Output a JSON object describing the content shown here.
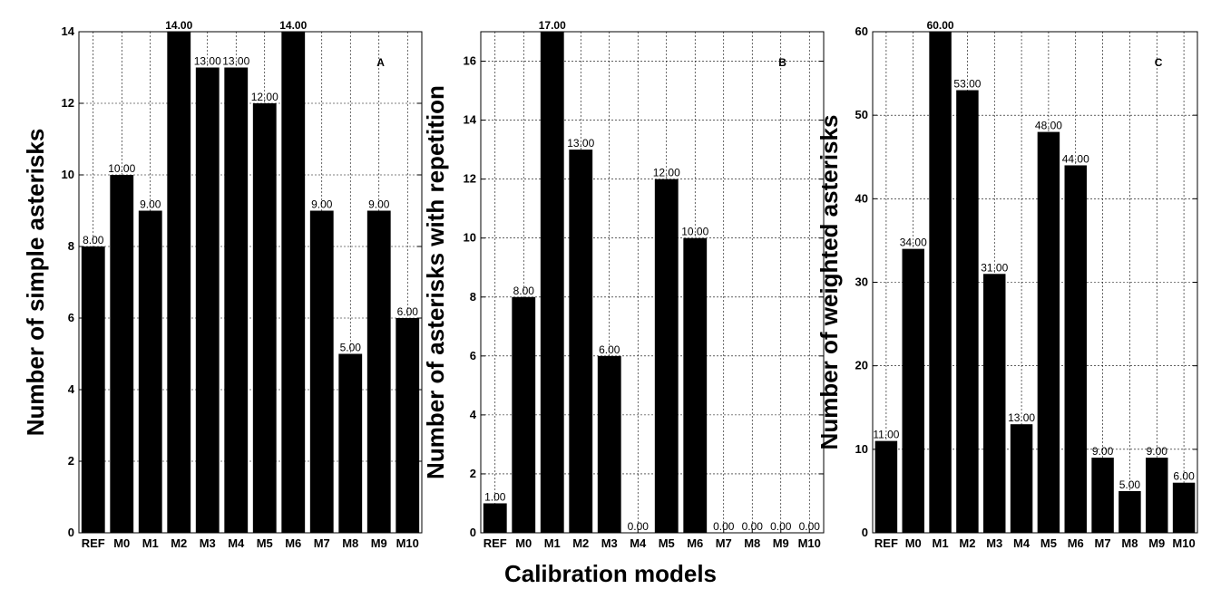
{
  "xlabel": "Calibration models",
  "chart_data": [
    {
      "type": "bar",
      "panel_letter": "A",
      "ylabel": "Number of simple asterisks",
      "categories": [
        "REF",
        "M0",
        "M1",
        "M2",
        "M3",
        "M4",
        "M5",
        "M6",
        "M7",
        "M8",
        "M9",
        "M10"
      ],
      "values": [
        8,
        10,
        9,
        14,
        13,
        13,
        12,
        14,
        9,
        5,
        9,
        6
      ],
      "value_labels": [
        "8.00",
        "10.00",
        "9.00",
        "14.00",
        "13.00",
        "13.00",
        "12.00",
        "14.00",
        "9.00",
        "5.00",
        "9.00",
        "6.00"
      ],
      "ylim": [
        0,
        14
      ],
      "yticks": [
        0,
        2,
        4,
        6,
        8,
        10,
        12,
        14
      ],
      "grid": true,
      "bar_color": "#000000"
    },
    {
      "type": "bar",
      "panel_letter": "B",
      "ylabel": "Number of asterisks with repetition",
      "categories": [
        "REF",
        "M0",
        "M1",
        "M2",
        "M3",
        "M4",
        "M5",
        "M6",
        "M7",
        "M8",
        "M9",
        "M10"
      ],
      "values": [
        1,
        8,
        17,
        13,
        6,
        0,
        12,
        10,
        0,
        0,
        0,
        0
      ],
      "value_labels": [
        "1.00",
        "8.00",
        "17.00",
        "13.00",
        "6.00",
        "0.00",
        "12.00",
        "10.00",
        "0.00",
        "0.00",
        "0.00",
        "0.00"
      ],
      "ylim": [
        0,
        17
      ],
      "yticks": [
        0,
        2,
        4,
        6,
        8,
        10,
        12,
        14,
        16
      ],
      "grid": true,
      "bar_color": "#000000"
    },
    {
      "type": "bar",
      "panel_letter": "C",
      "ylabel": "Number of weighted asterisks",
      "categories": [
        "REF",
        "M0",
        "M1",
        "M2",
        "M3",
        "M4",
        "M5",
        "M6",
        "M7",
        "M8",
        "M9",
        "M10"
      ],
      "values": [
        11,
        34,
        60,
        53,
        31,
        13,
        48,
        44,
        9,
        5,
        9,
        6
      ],
      "value_labels": [
        "11.00",
        "34.00",
        "60.00",
        "53.00",
        "31.00",
        "13.00",
        "48.00",
        "44.00",
        "9.00",
        "5.00",
        "9.00",
        "6.00"
      ],
      "ylim": [
        0,
        60
      ],
      "yticks": [
        0,
        10,
        20,
        30,
        40,
        50,
        60
      ],
      "grid": true,
      "bar_color": "#000000"
    }
  ]
}
